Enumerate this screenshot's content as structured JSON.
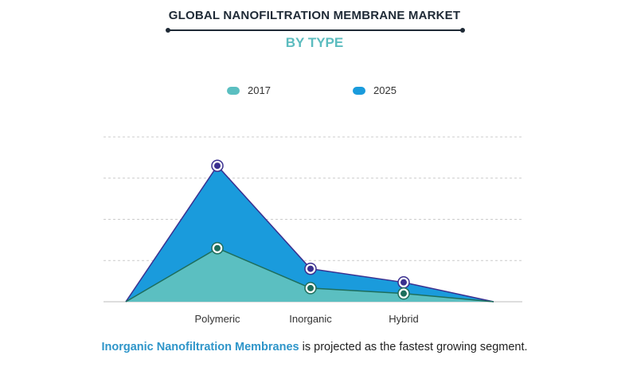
{
  "header": {
    "title": "GLOBAL NANOFILTRATION MEMBRANE MARKET",
    "subtitle": "BY TYPE"
  },
  "footer": {
    "highlight": "Inorganic Nanofiltration Membranes",
    "rest": " is projected as the fastest growing segment."
  },
  "colors": {
    "series_2017": "#5bbfc1",
    "series_2025": "#1a9bdc",
    "line_2017": "#1e6e5c",
    "line_2025": "#3a2f8f",
    "grid": "#cccccc"
  },
  "chart_data": {
    "type": "area",
    "categories": [
      "Polymeric",
      "Inorganic",
      "Hybrid"
    ],
    "ylim": [
      0,
      4
    ],
    "grid": true,
    "legend_position": "top-center",
    "series": [
      {
        "name": "2017",
        "values": [
          1.3,
          0.33,
          0.2
        ]
      },
      {
        "name": "2025",
        "values": [
          3.3,
          0.8,
          0.47
        ]
      }
    ]
  }
}
